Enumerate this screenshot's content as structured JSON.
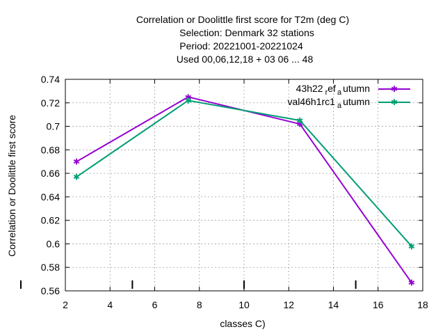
{
  "chart_data": {
    "type": "line",
    "title_lines": [
      "Correlation or Doolittle first score  for T2m (deg C)",
      "Selection: Denmark     32 stations",
      "Period: 20221001-20221024",
      "Used  00,06,12,18  + 03 06 ... 48"
    ],
    "xlabel": "classes C)",
    "ylabel": "Correlation or Doolittle first score",
    "xlim": [
      2,
      18
    ],
    "ylim": [
      0.56,
      0.74
    ],
    "x_ticks": [
      2,
      4,
      6,
      8,
      10,
      12,
      14,
      16,
      18
    ],
    "x_tick_labels": [
      "2",
      "4",
      "6",
      "8",
      "10",
      "12",
      "14",
      "16",
      "18"
    ],
    "y_ticks": [
      0.56,
      0.58,
      0.6,
      0.62,
      0.64,
      0.66,
      0.68,
      0.7,
      0.72,
      0.74
    ],
    "y_tick_labels": [
      "0.56",
      "0.58",
      "0.6",
      "0.62",
      "0.64",
      "0.66",
      "0.68",
      "0.7",
      "0.72",
      "0.74"
    ],
    "grid": true,
    "legend_position": "top-right",
    "class_separators": [
      5,
      10,
      15
    ],
    "x": [
      2.5,
      7.5,
      12.5,
      17.5
    ],
    "series": [
      {
        "name_main": "43h22",
        "name_sub1": "r",
        "name_mid": "ef",
        "name_sub2": "a",
        "name_end": "utumn",
        "color": "#9400d3",
        "values": [
          0.67,
          0.725,
          0.702,
          0.567
        ]
      },
      {
        "name_main": "val46h1rc1",
        "name_sub1": "",
        "name_mid": "",
        "name_sub2": "a",
        "name_end": "utumn",
        "color": "#009e73",
        "values": [
          0.657,
          0.722,
          0.705,
          0.598
        ]
      }
    ]
  }
}
